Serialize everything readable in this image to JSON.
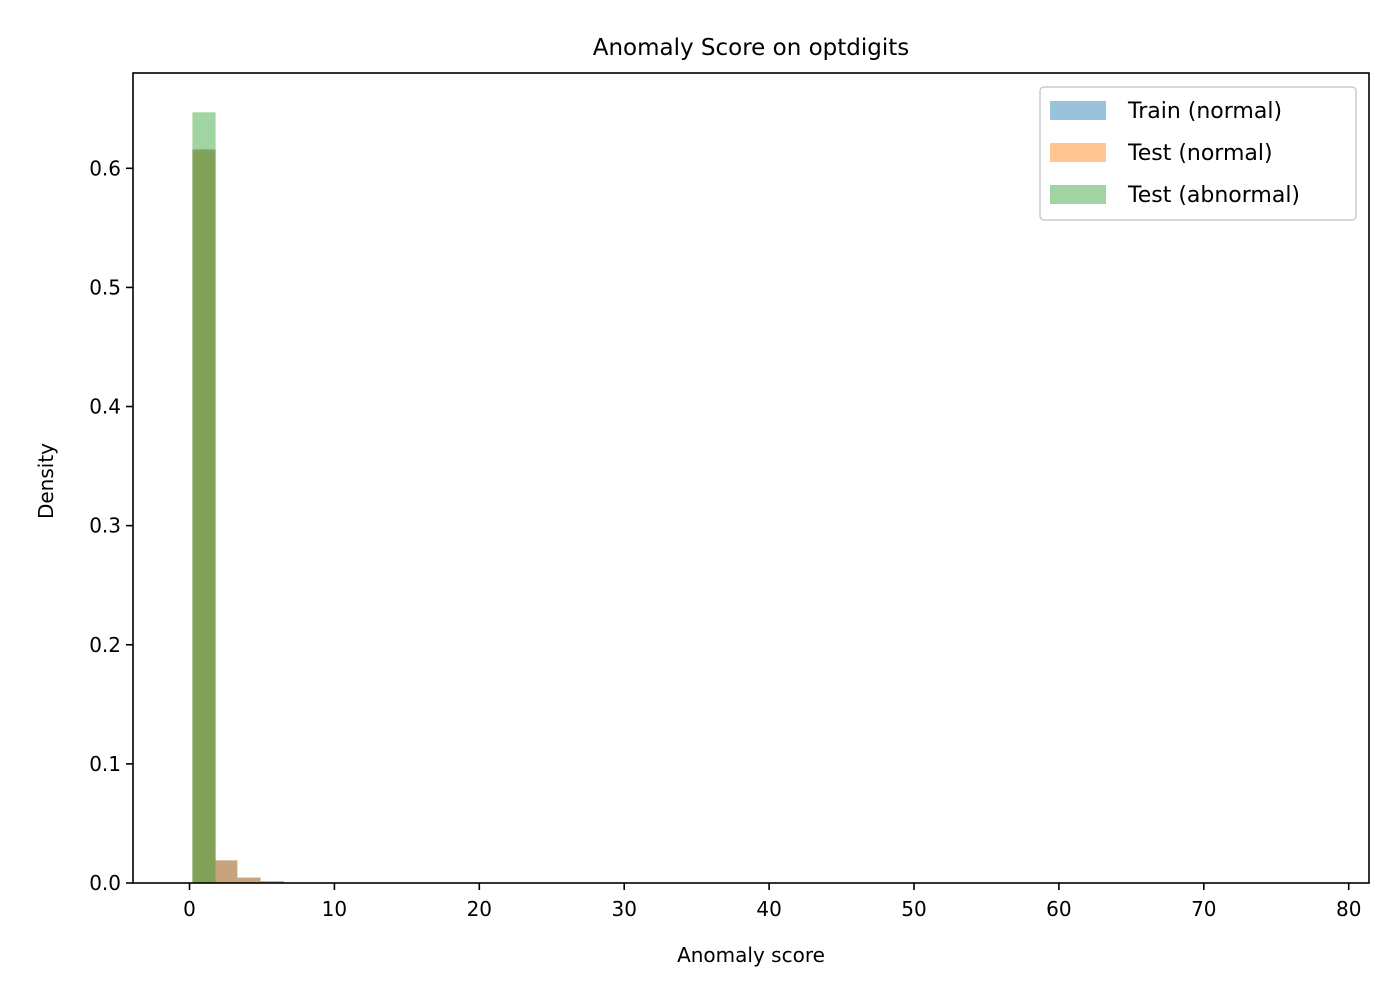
{
  "chart_data": {
    "type": "bar",
    "histogram": true,
    "title": "Anomaly Score on optdigits",
    "xlabel": "Anomaly score",
    "ylabel": "Density",
    "xlim": [
      -3.9,
      81.4
    ],
    "ylim": [
      0,
      0.68
    ],
    "xticks": [
      0,
      10,
      20,
      30,
      40,
      50,
      60,
      70,
      80
    ],
    "xtick_labels": [
      "0",
      "10",
      "20",
      "30",
      "40",
      "50",
      "60",
      "70",
      "80"
    ],
    "yticks": [
      0.0,
      0.1,
      0.2,
      0.3,
      0.4,
      0.5,
      0.6
    ],
    "ytick_labels": [
      "0.0",
      "0.1",
      "0.2",
      "0.3",
      "0.4",
      "0.5",
      "0.6"
    ],
    "grid": false,
    "legend_position": "top-right",
    "series": [
      {
        "name": "Train (normal)",
        "color": "#1f77b4",
        "alpha": 0.45,
        "bins": [
          [
            0.2,
            1.8,
            0.616
          ],
          [
            1.8,
            3.3,
            0.019
          ],
          [
            3.3,
            4.9,
            0.0045
          ],
          [
            4.9,
            6.5,
            0.0015
          ]
        ]
      },
      {
        "name": "Test (normal)",
        "color": "#ff7f0e",
        "alpha": 0.45,
        "bins": [
          [
            0.2,
            1.8,
            0.615
          ],
          [
            1.8,
            3.3,
            0.019
          ],
          [
            3.3,
            4.9,
            0.0045
          ],
          [
            4.9,
            6.5,
            0.0015
          ]
        ]
      },
      {
        "name": "Test (abnormal)",
        "color": "#2ca02c",
        "alpha": 0.45,
        "bins": [
          [
            0.2,
            1.8,
            0.647
          ]
        ]
      }
    ]
  }
}
